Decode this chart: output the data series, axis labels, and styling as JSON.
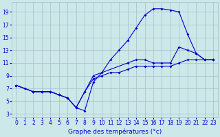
{
  "xlabel": "Graphe des températures (°c)",
  "background_color": "#cce8e8",
  "grid_color": "#aabbcc",
  "line_color": "#0000cc",
  "xlim": [
    -0.5,
    23.5
  ],
  "ylim": [
    2.5,
    20.5
  ],
  "xticks": [
    0,
    1,
    2,
    3,
    4,
    5,
    6,
    7,
    8,
    9,
    10,
    11,
    12,
    13,
    14,
    15,
    16,
    17,
    18,
    19,
    20,
    21,
    22,
    23
  ],
  "yticks": [
    3,
    5,
    7,
    9,
    11,
    13,
    15,
    17,
    19
  ],
  "curve1_x": [
    0,
    1,
    2,
    3,
    4,
    5,
    6,
    7,
    8,
    9,
    10,
    11,
    12,
    13,
    14,
    15,
    16,
    17,
    18,
    19,
    20,
    21,
    22,
    23
  ],
  "curve1_y": [
    7.5,
    7.0,
    6.5,
    6.5,
    6.5,
    6.0,
    5.5,
    4.0,
    3.5,
    8.0,
    9.5,
    11.5,
    13.0,
    14.5,
    16.5,
    18.5,
    19.5,
    19.5,
    19.3,
    19.0,
    15.5,
    12.5,
    11.5,
    11.5
  ],
  "curve2_x": [
    0,
    2,
    3,
    4,
    5,
    6,
    7,
    8,
    9,
    13,
    14,
    15,
    16,
    17,
    18,
    19,
    20,
    21,
    22,
    23
  ],
  "curve2_y": [
    7.5,
    6.5,
    6.5,
    6.5,
    6.0,
    5.5,
    4.0,
    6.5,
    9.0,
    11.0,
    11.5,
    11.5,
    11.0,
    11.0,
    11.0,
    13.5,
    13.0,
    12.5,
    11.5,
    11.5
  ],
  "curve3_x": [
    0,
    2,
    3,
    4,
    5,
    6,
    7,
    8,
    9,
    10,
    11,
    12,
    13,
    14,
    15,
    16,
    17,
    18,
    19,
    20,
    21,
    22,
    23
  ],
  "curve3_y": [
    7.5,
    6.5,
    6.5,
    6.5,
    6.0,
    5.5,
    4.0,
    6.5,
    8.5,
    9.0,
    9.5,
    9.5,
    10.0,
    10.5,
    10.5,
    10.5,
    10.5,
    10.5,
    11.0,
    11.5,
    11.5,
    11.5,
    11.5
  ],
  "tick_fontsize": 5.5,
  "xlabel_fontsize": 6.5
}
